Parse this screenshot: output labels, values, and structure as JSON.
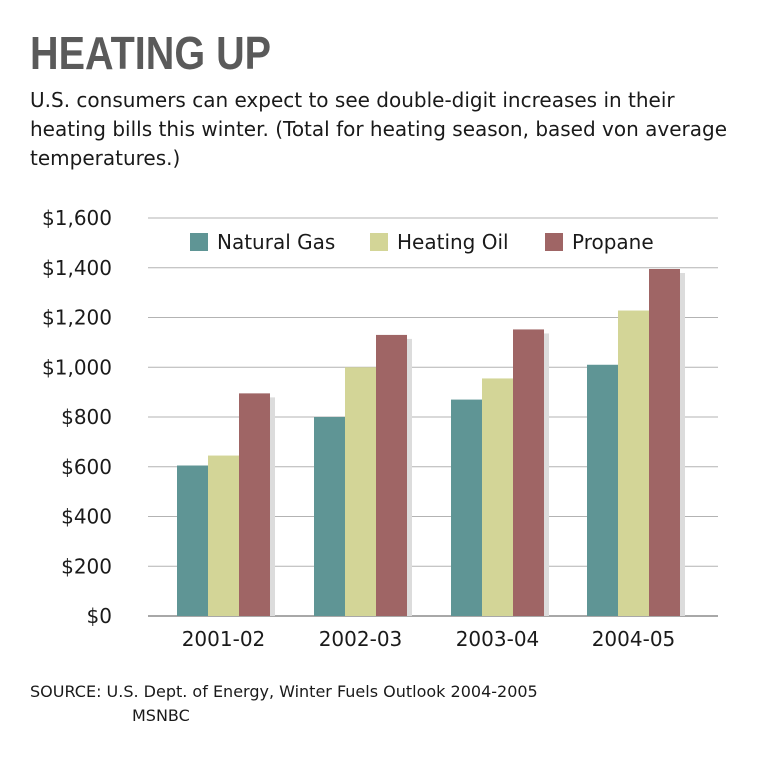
{
  "title": "HEATING UP",
  "subtitle": "U.S. consumers can expect to see double-digit increases in their heating bills this winter. (Total for heating season, based von average temperatures.)",
  "source": "SOURCE: U.S. Dept. of Energy, Winter Fuels Outlook 2004-2005",
  "credit": "MSNBC",
  "colors": {
    "natural_gas": "#5f9595",
    "heating_oil": "#d3d597",
    "propane": "#9f6565",
    "shadow": "#dcdcdc",
    "grid": "#b3b3b3"
  },
  "chart_data": {
    "type": "bar",
    "categories": [
      "2001-02",
      "2002-03",
      "2003-04",
      "2004-05"
    ],
    "series": [
      {
        "name": "Natural Gas",
        "values": [
          605,
          800,
          870,
          1010
        ]
      },
      {
        "name": "Heating Oil",
        "values": [
          645,
          1000,
          955,
          1228
        ]
      },
      {
        "name": "Propane",
        "values": [
          895,
          1130,
          1152,
          1395
        ]
      }
    ],
    "yticks": [
      "$0",
      "$200",
      "$400",
      "$600",
      "$800",
      "$1,000",
      "$1,200",
      "$1,400",
      "$1,600"
    ],
    "ylim": [
      0,
      1600
    ],
    "grid": true,
    "legend": "top"
  }
}
